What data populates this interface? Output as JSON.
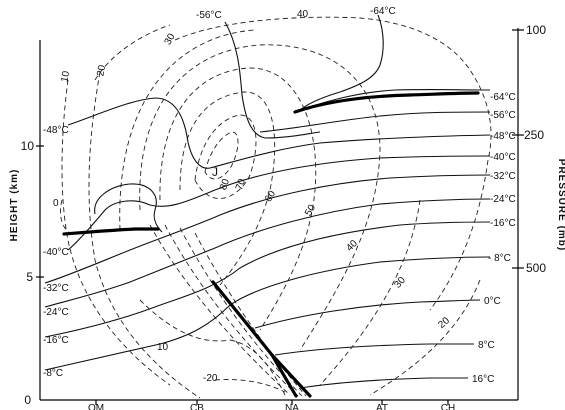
{
  "figure": {
    "left_axis_label": "HEIGHT (km)",
    "right_axis_label": "PRESSURE (mb)",
    "height_ticks": [
      "0",
      "5",
      "10"
    ],
    "pressure_ticks": [
      "100",
      "250",
      "500"
    ],
    "stations": [
      "OM",
      "CB",
      "NA",
      "AT",
      "CH"
    ],
    "temperature_labels_left": [
      "-48°C",
      "-40°C",
      "-32°C",
      "-24°C",
      "-16°C",
      "-8°C"
    ],
    "temperature_labels_right": [
      "-64°C",
      "-56°C",
      "-48°C",
      "-40°C",
      "-32°C",
      "-24°C",
      "-16°C",
      "- 8°C",
      "0°C",
      "8°C",
      "16°C"
    ],
    "temperature_labels_top": [
      "-56°C",
      "-64°C"
    ],
    "wind_labels": [
      "40",
      "30",
      "10",
      "20",
      "0",
      "80",
      "70",
      "60",
      "50",
      "40",
      "30",
      "20",
      "10",
      "-20"
    ],
    "jet_label": "J"
  }
}
